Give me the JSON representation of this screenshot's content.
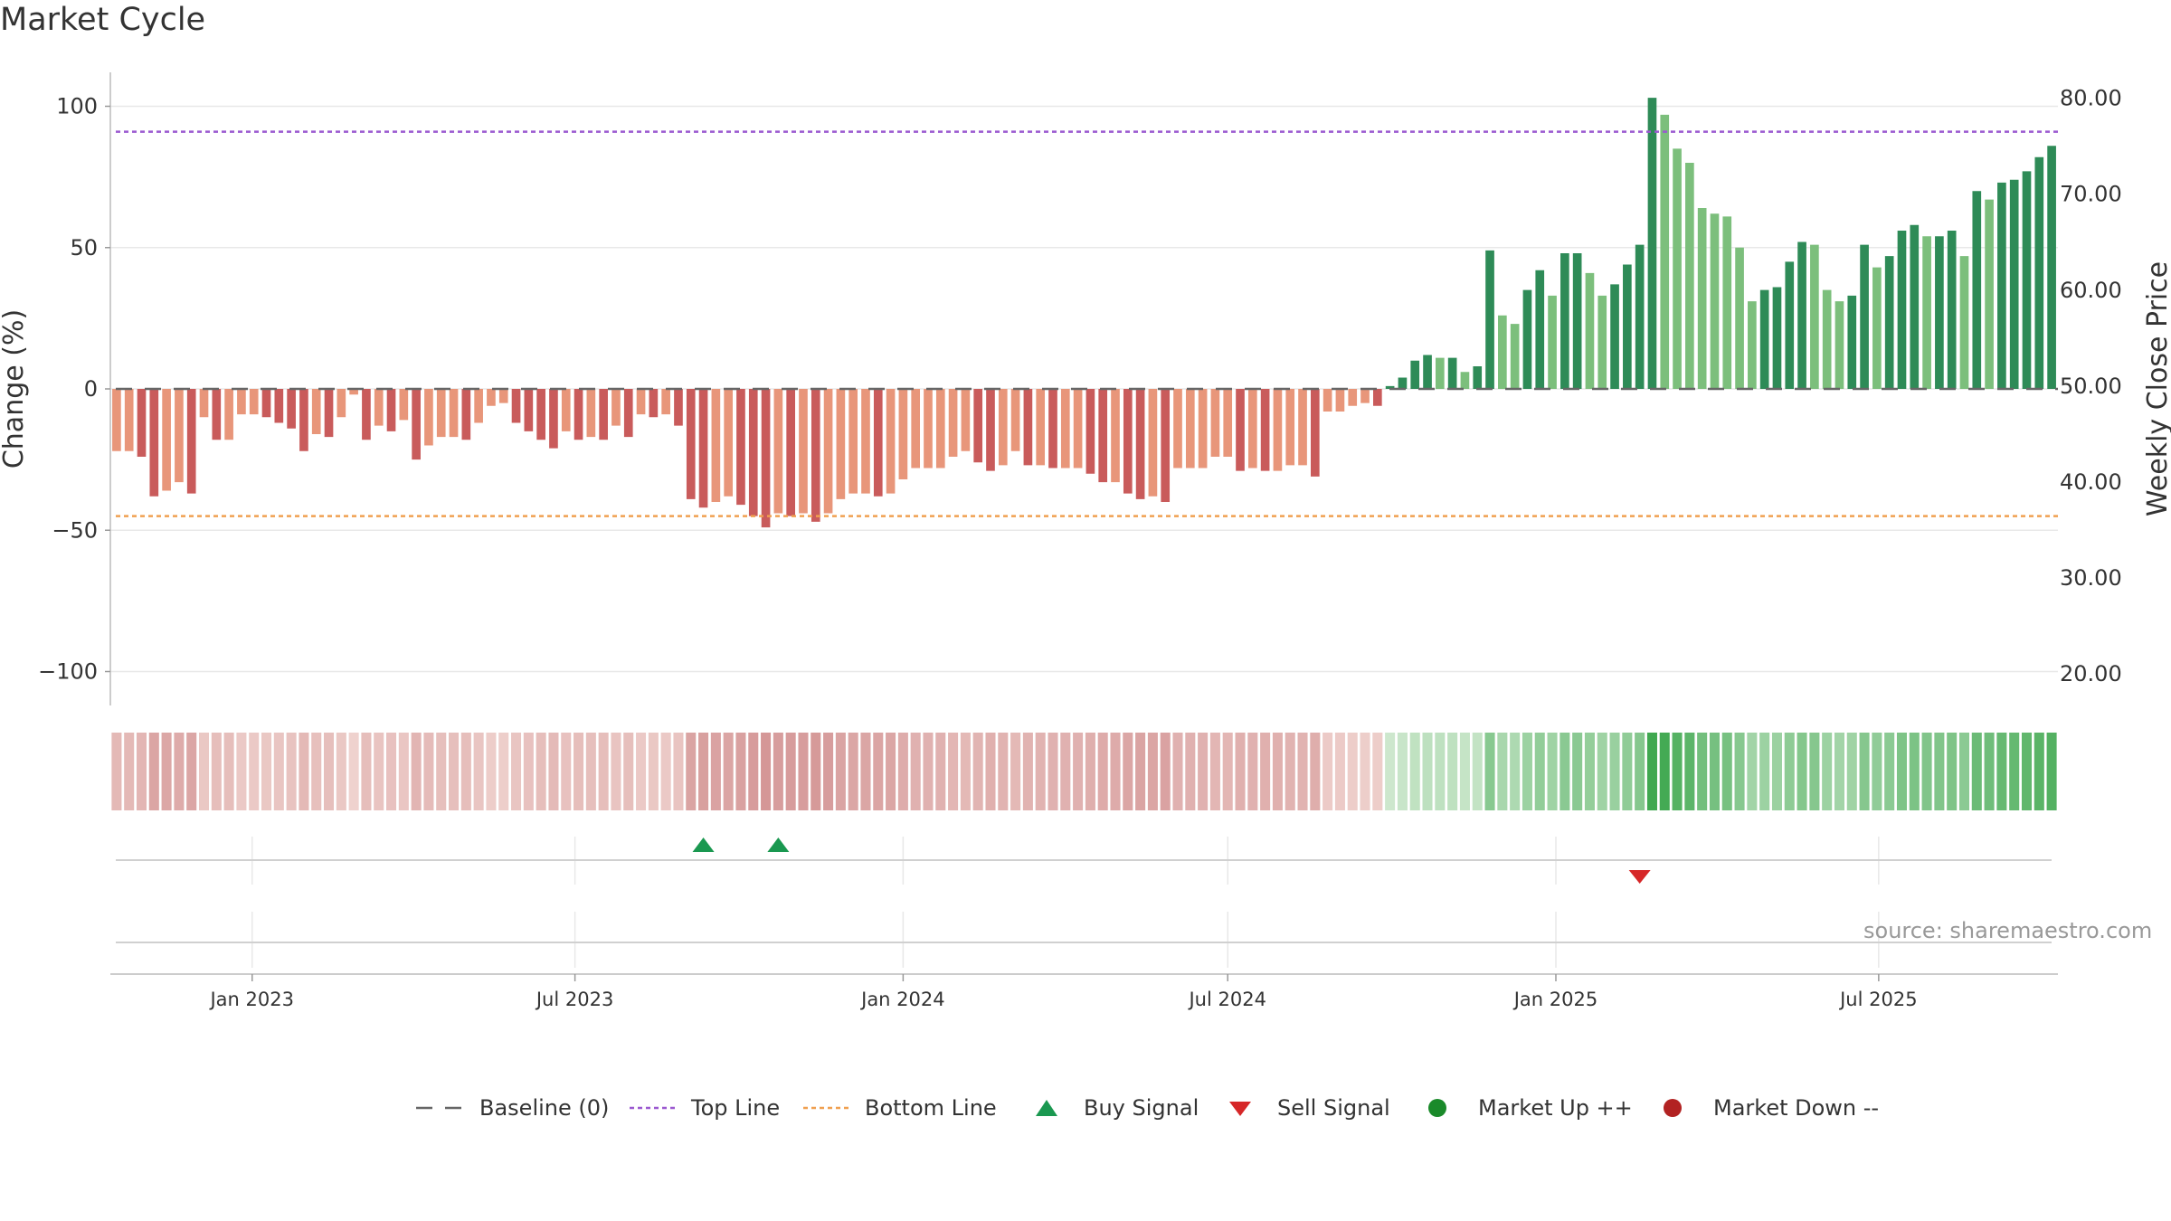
{
  "page": {
    "title": "Market Cycle",
    "source": "source: sharemaestro.com"
  },
  "legend": [
    {
      "key": "baseline",
      "label": "Baseline (0)",
      "color": "#666666"
    },
    {
      "key": "top",
      "label": "Top Line",
      "color": "#9b59d0"
    },
    {
      "key": "bottom",
      "label": "Bottom Line",
      "color": "#f0a050"
    },
    {
      "key": "buy",
      "label": "Buy Signal",
      "color": "#1a9850"
    },
    {
      "key": "sell",
      "label": "Sell Signal",
      "color": "#d62728"
    },
    {
      "key": "up",
      "label": "Market Up ++",
      "color": "#1a8a2a"
    },
    {
      "key": "down",
      "label": "Market Down --",
      "color": "#b22222"
    }
  ],
  "chart_data": {
    "type": "bar",
    "title": "Market Cycle",
    "ylabel_left": "Change (%)",
    "ylabel_right": "Weekly Close Price",
    "ylim_left": [
      -112,
      112
    ],
    "ylim_right": [
      16.7,
      82.7
    ],
    "yticks_left": [
      100,
      50,
      0,
      -50,
      -100
    ],
    "yticks_left_labels": [
      "100",
      "50",
      "0",
      "−50",
      "−100"
    ],
    "yticks_right": [
      80,
      70,
      60,
      50,
      40,
      30,
      20
    ],
    "yticks_right_labels": [
      "80.00",
      "70.00",
      "60.00",
      "50.00",
      "40.00",
      "30.00",
      "20.00"
    ],
    "reference_lines": {
      "baseline": 0,
      "top": 91,
      "bottom": -45
    },
    "x_axis": {
      "start": "2022-10-17",
      "frequency": "weekly",
      "ticks": [
        {
          "date": "2023-01-01",
          "label": "Jan 2023"
        },
        {
          "date": "2023-07-01",
          "label": "Jul 2023"
        },
        {
          "date": "2024-01-01",
          "label": "Jan 2024"
        },
        {
          "date": "2024-07-01",
          "label": "Jul 2024"
        },
        {
          "date": "2025-01-01",
          "label": "Jan 2025"
        },
        {
          "date": "2025-07-01",
          "label": "Jul 2025"
        }
      ]
    },
    "values": [
      -22,
      -22,
      -24,
      -38,
      -36,
      -33,
      -37,
      -10,
      -18,
      -18,
      -9,
      -9,
      -10,
      -12,
      -14,
      -22,
      -16,
      -17,
      -10,
      -2,
      -18,
      -13,
      -15,
      -11,
      -25,
      -20,
      -17,
      -17,
      -18,
      -12,
      -6,
      -5,
      -12,
      -15,
      -18,
      -21,
      -15,
      -18,
      -17,
      -18,
      -13,
      -17,
      -9,
      -10,
      -9,
      -13,
      -39,
      -42,
      -40,
      -38,
      -41,
      -45,
      -49,
      -44,
      -45,
      -44,
      -47,
      -44,
      -39,
      -37,
      -37,
      -38,
      -37,
      -32,
      -28,
      -28,
      -28,
      -24,
      -22,
      -26,
      -29,
      -27,
      -22,
      -27,
      -27,
      -28,
      -28,
      -28,
      -30,
      -33,
      -33,
      -37,
      -39,
      -38,
      -40,
      -28,
      -28,
      -28,
      -24,
      -24,
      -29,
      -28,
      -29,
      -29,
      -27,
      -27,
      -31,
      -8,
      -8,
      -6,
      -5,
      -6,
      1,
      4,
      10,
      12,
      11,
      11,
      6,
      8,
      49,
      26,
      23,
      35,
      42,
      33,
      48,
      48,
      41,
      33,
      37,
      44,
      51,
      103,
      97,
      85,
      80,
      64,
      62,
      61,
      50,
      31,
      35,
      36,
      45,
      52,
      51,
      35,
      31,
      33,
      51,
      43,
      47,
      56,
      58,
      54,
      54,
      56,
      47,
      70,
      67,
      73,
      74,
      77,
      82,
      86
    ],
    "buy_signals": [
      "2023-09-11",
      "2023-10-23"
    ],
    "sell_signals": [
      "2025-02-17"
    ],
    "colors": {
      "neg_strong": "#c95b5b",
      "neg_light": "#e8967a",
      "pos_strong": "#2e8b57",
      "pos_light": "#7cbf7c",
      "top_line": "#9b59d0",
      "bottom_line": "#f0a050",
      "buy": "#1a9850",
      "sell": "#d62728"
    }
  }
}
